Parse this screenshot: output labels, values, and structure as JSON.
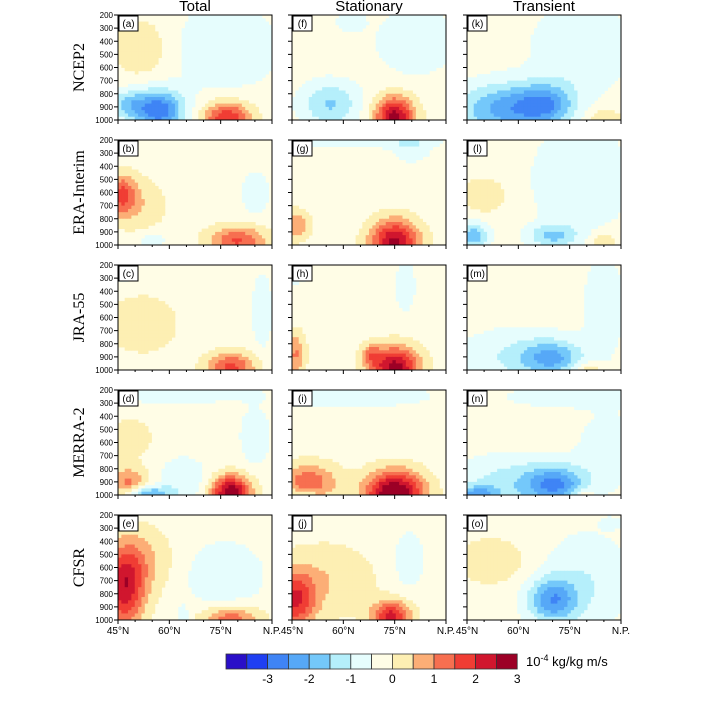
{
  "chart_data": {
    "type": "heatmap",
    "title": "",
    "columns": [
      "Total",
      "Stationary",
      "Transient"
    ],
    "rows": [
      "NCEP2",
      "ERA-Interim",
      "JRA-55",
      "MERRA-2",
      "CFSR"
    ],
    "panel_labels": [
      [
        "(a)",
        "(f)",
        "(k)"
      ],
      [
        "(b)",
        "(g)",
        "(l)"
      ],
      [
        "(c)",
        "(h)",
        "(m)"
      ],
      [
        "(d)",
        "(i)",
        "(n)"
      ],
      [
        "(e)",
        "(j)",
        "(o)"
      ]
    ],
    "yticks": [
      "200",
      "300",
      "400",
      "500",
      "600",
      "700",
      "800",
      "900",
      "1000"
    ],
    "ylim": [
      1000,
      200
    ],
    "xticks": [
      "45°N",
      "60°N",
      "75°N",
      "N.P."
    ],
    "xlim": [
      45,
      90
    ],
    "colorbar": {
      "levels": [
        -3.5,
        -3,
        -2.5,
        -2,
        -1.5,
        -1,
        -0.5,
        0,
        0.5,
        1,
        1.5,
        2,
        2.5,
        3,
        3.5
      ],
      "tick_labels": [
        "-3",
        "-2",
        "-1",
        "0",
        "1",
        "2",
        "3"
      ],
      "colors": [
        "#2a0fc8",
        "#1f3ff2",
        "#3f84f5",
        "#56a8f7",
        "#74c8fa",
        "#b5effb",
        "#e6fdfd",
        "#fffde6",
        "#fdefb3",
        "#fcae76",
        "#f76f50",
        "#f03d34",
        "#d0162e",
        "#9c0026"
      ],
      "units_base": "10",
      "units_exp": "-4",
      "units_rest": " kg/kg m/s"
    },
    "blobs": [
      [
        [
          {
            "lat": 57,
            "p": 930,
            "v": -2.6,
            "rl": 5,
            "rp": 110
          },
          {
            "lat": 77,
            "p": 990,
            "v": 2.3,
            "rl": 5,
            "rp": 90
          },
          {
            "lat": 52,
            "p": 450,
            "v": 0.7,
            "rl": 6,
            "rp": 160
          },
          {
            "lat": 76,
            "p": 450,
            "v": -0.6,
            "rl": 12,
            "rp": 250
          },
          {
            "lat": 48,
            "p": 880,
            "v": -1.2,
            "rl": 4,
            "rp": 80
          }
        ],
        [
          {
            "lat": 46,
            "p": 620,
            "v": 1.8,
            "rl": 3,
            "rp": 110
          },
          {
            "lat": 80,
            "p": 970,
            "v": 1.8,
            "rl": 6,
            "rp": 80
          },
          {
            "lat": 52,
            "p": 700,
            "v": 0.6,
            "rl": 5,
            "rp": 150
          },
          {
            "lat": 85,
            "p": 600,
            "v": -0.6,
            "rl": 3,
            "rp": 120
          },
          {
            "lat": 55,
            "p": 960,
            "v": -0.6,
            "rl": 3,
            "rp": 50
          }
        ],
        [
          {
            "lat": 78,
            "p": 980,
            "v": 1.9,
            "rl": 5,
            "rp": 80
          },
          {
            "lat": 52,
            "p": 650,
            "v": 0.7,
            "rl": 7,
            "rp": 150
          },
          {
            "lat": 87,
            "p": 550,
            "v": -0.7,
            "rl": 2,
            "rp": 200
          },
          {
            "lat": 46,
            "p": 260,
            "v": -0.7,
            "rl": 2,
            "rp": 60
          }
        ],
        [
          {
            "lat": 78,
            "p": 980,
            "v": 3.2,
            "rl": 4,
            "rp": 90
          },
          {
            "lat": 48,
            "p": 930,
            "v": 1.5,
            "rl": 4,
            "rp": 100
          },
          {
            "lat": 53,
            "p": 990,
            "v": -2.0,
            "rl": 5,
            "rp": 40
          },
          {
            "lat": 64,
            "p": 880,
            "v": -0.7,
            "rl": 5,
            "rp": 120
          },
          {
            "lat": 85,
            "p": 550,
            "v": -0.7,
            "rl": 3,
            "rp": 150
          },
          {
            "lat": 62,
            "p": 230,
            "v": -0.6,
            "rl": 18,
            "rp": 50
          },
          {
            "lat": 48,
            "p": 560,
            "v": 0.6,
            "rl": 5,
            "rp": 100
          }
        ],
        [
          {
            "lat": 47,
            "p": 780,
            "v": 2.3,
            "rl": 4,
            "rp": 200
          },
          {
            "lat": 50,
            "p": 550,
            "v": 1.0,
            "rl": 7,
            "rp": 180
          },
          {
            "lat": 76,
            "p": 660,
            "v": -0.7,
            "rl": 8,
            "rp": 180
          },
          {
            "lat": 78,
            "p": 990,
            "v": 1.6,
            "rl": 6,
            "rp": 70
          },
          {
            "lat": 64,
            "p": 980,
            "v": -0.8,
            "rl": 1,
            "rp": 60
          }
        ]
      ],
      [
        [
          {
            "lat": 75,
            "p": 980,
            "v": 3.0,
            "rl": 4,
            "rp": 110
          },
          {
            "lat": 56,
            "p": 880,
            "v": -1.3,
            "rl": 6,
            "rp": 120
          },
          {
            "lat": 81,
            "p": 400,
            "v": -0.7,
            "rl": 8,
            "rp": 180
          },
          {
            "lat": 62,
            "p": 240,
            "v": -0.6,
            "rl": 3,
            "rp": 60
          }
        ],
        [
          {
            "lat": 75,
            "p": 980,
            "v": 2.9,
            "rl": 5,
            "rp": 120
          },
          {
            "lat": 46,
            "p": 850,
            "v": 1.2,
            "rl": 3,
            "rp": 80
          },
          {
            "lat": 80,
            "p": 260,
            "v": -0.6,
            "rl": 4,
            "rp": 80
          },
          {
            "lat": 60,
            "p": 220,
            "v": -0.6,
            "rl": 20,
            "rp": 30
          }
        ],
        [
          {
            "lat": 75,
            "p": 980,
            "v": 3.0,
            "rl": 5,
            "rp": 110
          },
          {
            "lat": 46,
            "p": 880,
            "v": 1.3,
            "rl": 2,
            "rp": 120
          },
          {
            "lat": 68,
            "p": 880,
            "v": 1.0,
            "rl": 2,
            "rp": 60
          },
          {
            "lat": 78,
            "p": 360,
            "v": -0.7,
            "rl": 2,
            "rp": 130
          },
          {
            "lat": 46,
            "p": 260,
            "v": -0.6,
            "rl": 3,
            "rp": 60
          }
        ],
        [
          {
            "lat": 75,
            "p": 990,
            "v": 3.5,
            "rl": 6,
            "rp": 120
          },
          {
            "lat": 50,
            "p": 900,
            "v": 1.6,
            "rl": 6,
            "rp": 100
          },
          {
            "lat": 59,
            "p": 240,
            "v": -0.6,
            "rl": 20,
            "rp": 70
          },
          {
            "lat": 48,
            "p": 990,
            "v": -0.7,
            "rl": 3,
            "rp": 25
          }
        ],
        [
          {
            "lat": 46,
            "p": 850,
            "v": 2.1,
            "rl": 4,
            "rp": 150
          },
          {
            "lat": 74,
            "p": 970,
            "v": 2.4,
            "rl": 4,
            "rp": 80
          },
          {
            "lat": 79,
            "p": 540,
            "v": -0.7,
            "rl": 3,
            "rp": 150
          },
          {
            "lat": 55,
            "p": 700,
            "v": 0.7,
            "rl": 10,
            "rp": 200
          }
        ]
      ],
      [
        [
          {
            "lat": 56,
            "p": 920,
            "v": -1.9,
            "rl": 10,
            "rp": 140
          },
          {
            "lat": 68,
            "p": 880,
            "v": -1.6,
            "rl": 6,
            "rp": 110
          },
          {
            "lat": 78,
            "p": 450,
            "v": -0.7,
            "rl": 10,
            "rp": 250
          },
          {
            "lat": 85,
            "p": 990,
            "v": 0.7,
            "rl": 4,
            "rp": 60
          }
        ],
        [
          {
            "lat": 47,
            "p": 930,
            "v": -1.6,
            "rl": 3,
            "rp": 70
          },
          {
            "lat": 70,
            "p": 930,
            "v": -1.3,
            "rl": 5,
            "rp": 60
          },
          {
            "lat": 78,
            "p": 500,
            "v": -0.7,
            "rl": 10,
            "rp": 300
          },
          {
            "lat": 50,
            "p": 620,
            "v": 0.6,
            "rl": 5,
            "rp": 100
          },
          {
            "lat": 85,
            "p": 980,
            "v": 0.7,
            "rl": 3,
            "rp": 60
          }
        ],
        [
          {
            "lat": 70,
            "p": 910,
            "v": -1.5,
            "rl": 6,
            "rp": 90
          },
          {
            "lat": 60,
            "p": 900,
            "v": -0.8,
            "rl": 12,
            "rp": 150
          },
          {
            "lat": 85,
            "p": 500,
            "v": -0.7,
            "rl": 4,
            "rp": 250
          },
          {
            "lat": 80,
            "p": 990,
            "v": 0.9,
            "rl": 3,
            "rp": 40
          }
        ],
        [
          {
            "lat": 71,
            "p": 920,
            "v": -1.9,
            "rl": 6,
            "rp": 100
          },
          {
            "lat": 58,
            "p": 920,
            "v": -1.0,
            "rl": 12,
            "rp": 150
          },
          {
            "lat": 48,
            "p": 990,
            "v": -1.5,
            "rl": 4,
            "rp": 40
          },
          {
            "lat": 86,
            "p": 650,
            "v": -0.6,
            "rl": 6,
            "rp": 200
          },
          {
            "lat": 75,
            "p": 250,
            "v": -0.6,
            "rl": 14,
            "rp": 60
          },
          {
            "lat": 79,
            "p": 990,
            "v": 0.8,
            "rl": 2,
            "rp": 30
          }
        ],
        [
          {
            "lat": 70,
            "p": 850,
            "v": -2.0,
            "rl": 5,
            "rp": 120
          },
          {
            "lat": 80,
            "p": 700,
            "v": -0.7,
            "rl": 9,
            "rp": 260
          },
          {
            "lat": 52,
            "p": 550,
            "v": 0.7,
            "rl": 7,
            "rp": 120
          },
          {
            "lat": 87,
            "p": 260,
            "v": -0.6,
            "rl": 2,
            "rp": 30
          }
        ]
      ]
    ]
  }
}
